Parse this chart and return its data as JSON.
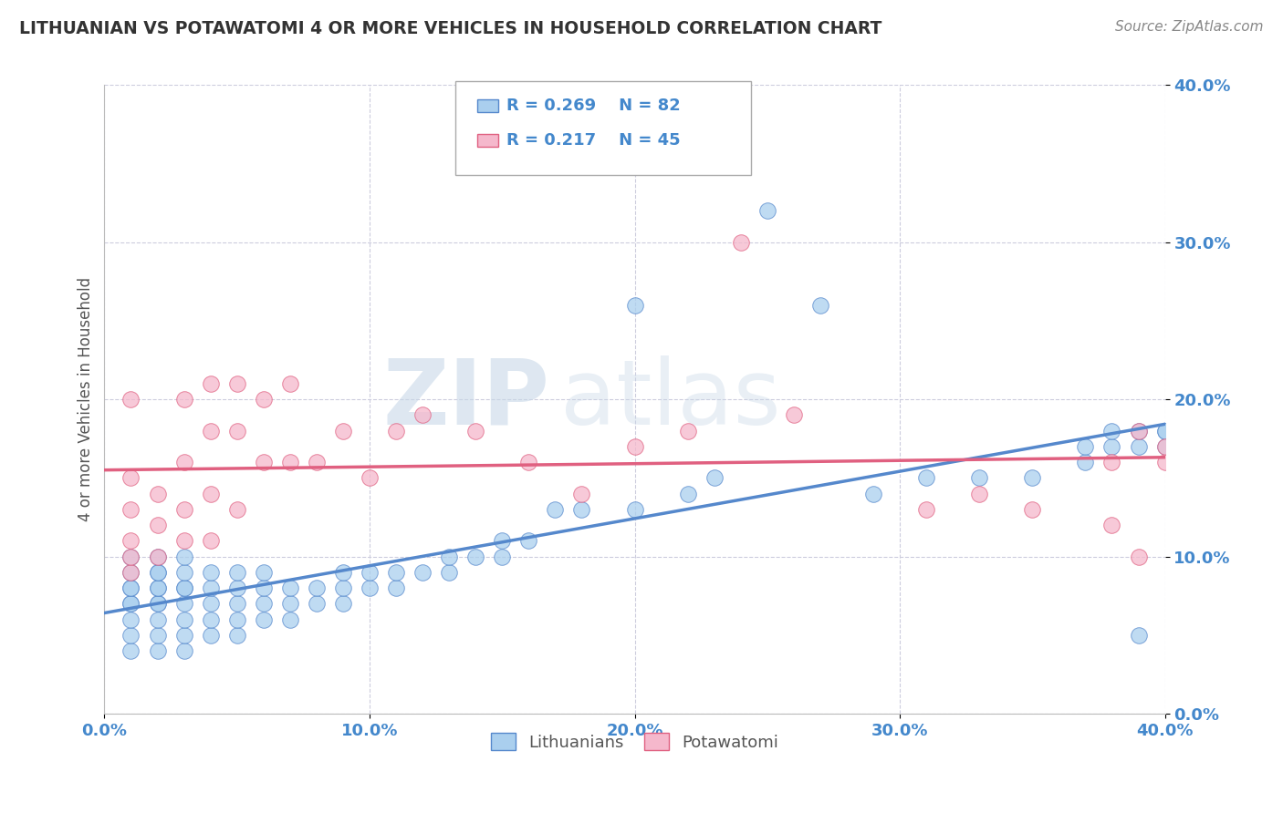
{
  "title": "LITHUANIAN VS POTAWATOMI 4 OR MORE VEHICLES IN HOUSEHOLD CORRELATION CHART",
  "source": "Source: ZipAtlas.com",
  "ylabel_label": "4 or more Vehicles in Household",
  "xlim": [
    0.0,
    0.4
  ],
  "ylim": [
    0.0,
    0.4
  ],
  "legend_label1": "Lithuanians",
  "legend_label2": "Potawatomi",
  "R1": 0.269,
  "N1": 82,
  "R2": 0.217,
  "N2": 45,
  "color1": "#aacfee",
  "color2": "#f5b8cc",
  "line_color1": "#5588cc",
  "line_color2": "#e06080",
  "text_color": "#4488cc",
  "title_color": "#333333",
  "source_color": "#888888",
  "watermark_zip": "ZIP",
  "watermark_atlas": "atlas",
  "background": "#ffffff",
  "grid_color": "#ccccdd",
  "tick_color": "#4488cc",
  "scatter1_x": [
    0.01,
    0.01,
    0.01,
    0.01,
    0.01,
    0.01,
    0.01,
    0.01,
    0.01,
    0.02,
    0.02,
    0.02,
    0.02,
    0.02,
    0.02,
    0.02,
    0.02,
    0.02,
    0.02,
    0.03,
    0.03,
    0.03,
    0.03,
    0.03,
    0.03,
    0.03,
    0.03,
    0.04,
    0.04,
    0.04,
    0.04,
    0.04,
    0.05,
    0.05,
    0.05,
    0.05,
    0.05,
    0.06,
    0.06,
    0.06,
    0.06,
    0.07,
    0.07,
    0.07,
    0.08,
    0.08,
    0.09,
    0.09,
    0.09,
    0.1,
    0.1,
    0.11,
    0.11,
    0.12,
    0.13,
    0.13,
    0.14,
    0.15,
    0.15,
    0.16,
    0.17,
    0.18,
    0.2,
    0.2,
    0.22,
    0.23,
    0.25,
    0.27,
    0.29,
    0.31,
    0.33,
    0.35,
    0.37,
    0.37,
    0.38,
    0.38,
    0.39,
    0.39,
    0.39,
    0.4,
    0.4,
    0.4
  ],
  "scatter1_y": [
    0.04,
    0.05,
    0.06,
    0.07,
    0.07,
    0.08,
    0.08,
    0.09,
    0.1,
    0.04,
    0.05,
    0.06,
    0.07,
    0.07,
    0.08,
    0.08,
    0.09,
    0.09,
    0.1,
    0.04,
    0.05,
    0.06,
    0.07,
    0.08,
    0.08,
    0.09,
    0.1,
    0.05,
    0.06,
    0.07,
    0.08,
    0.09,
    0.05,
    0.06,
    0.07,
    0.08,
    0.09,
    0.06,
    0.07,
    0.08,
    0.09,
    0.06,
    0.07,
    0.08,
    0.07,
    0.08,
    0.07,
    0.08,
    0.09,
    0.08,
    0.09,
    0.08,
    0.09,
    0.09,
    0.09,
    0.1,
    0.1,
    0.1,
    0.11,
    0.11,
    0.13,
    0.13,
    0.13,
    0.26,
    0.14,
    0.15,
    0.32,
    0.26,
    0.14,
    0.15,
    0.15,
    0.15,
    0.16,
    0.17,
    0.17,
    0.18,
    0.17,
    0.18,
    0.05,
    0.17,
    0.18,
    0.18
  ],
  "scatter2_x": [
    0.01,
    0.01,
    0.01,
    0.01,
    0.01,
    0.01,
    0.02,
    0.02,
    0.02,
    0.03,
    0.03,
    0.03,
    0.03,
    0.04,
    0.04,
    0.04,
    0.04,
    0.05,
    0.05,
    0.05,
    0.06,
    0.06,
    0.07,
    0.07,
    0.08,
    0.09,
    0.1,
    0.11,
    0.12,
    0.14,
    0.16,
    0.18,
    0.2,
    0.22,
    0.24,
    0.26,
    0.31,
    0.33,
    0.35,
    0.38,
    0.38,
    0.39,
    0.39,
    0.4,
    0.4
  ],
  "scatter2_y": [
    0.09,
    0.1,
    0.11,
    0.13,
    0.15,
    0.2,
    0.1,
    0.12,
    0.14,
    0.11,
    0.13,
    0.16,
    0.2,
    0.11,
    0.14,
    0.18,
    0.21,
    0.13,
    0.18,
    0.21,
    0.16,
    0.2,
    0.16,
    0.21,
    0.16,
    0.18,
    0.15,
    0.18,
    0.19,
    0.18,
    0.16,
    0.14,
    0.17,
    0.18,
    0.3,
    0.19,
    0.13,
    0.14,
    0.13,
    0.12,
    0.16,
    0.1,
    0.18,
    0.16,
    0.17
  ]
}
